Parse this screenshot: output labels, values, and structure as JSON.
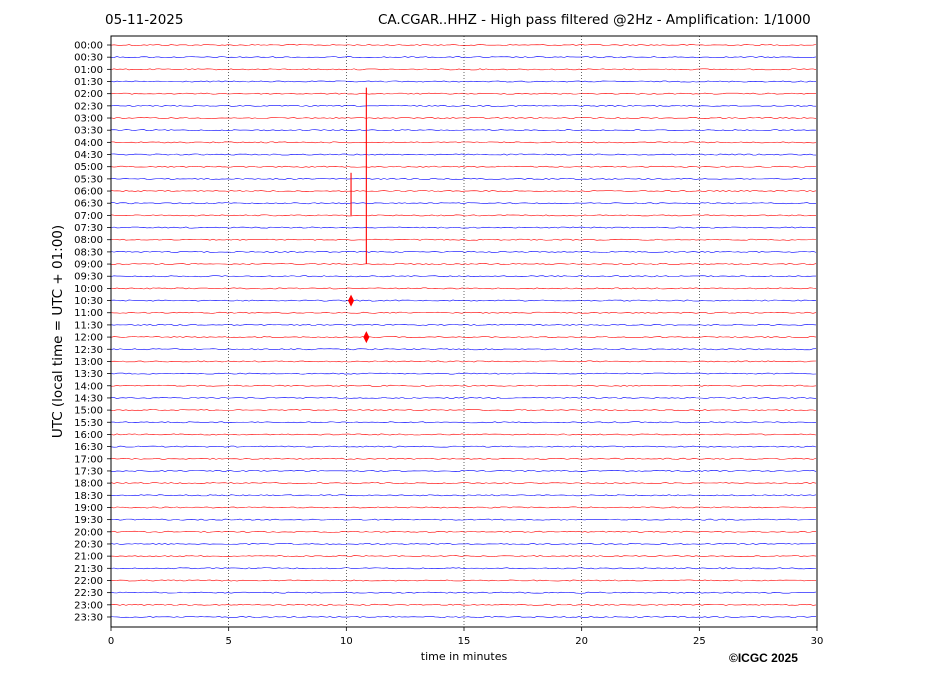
{
  "header": {
    "date": "05-11-2025",
    "title": "CA.CGAR..HHZ - High pass filtered @2Hz - Amplification: 1/1000"
  },
  "copyright": "©ICGC 2025",
  "chart_data": {
    "type": "line",
    "title": "CA.CGAR..HHZ - High pass filtered @2Hz - Amplification: 1/1000",
    "date": "05-11-2025",
    "xlabel": "time in minutes",
    "ylabel": "UTC (local time = UTC + 01:00)",
    "xlim": [
      0,
      30
    ],
    "x_ticks": [
      0,
      5,
      10,
      15,
      20,
      25,
      30
    ],
    "x_tick_labels": [
      "0",
      "5",
      "10",
      "15",
      "20",
      "25",
      "30"
    ],
    "y_tick_labels": [
      "00:00",
      "00:30",
      "01:00",
      "01:30",
      "02:00",
      "02:30",
      "03:00",
      "03:30",
      "04:00",
      "04:30",
      "05:00",
      "05:30",
      "06:00",
      "06:30",
      "07:00",
      "07:30",
      "08:00",
      "08:30",
      "09:00",
      "09:30",
      "10:00",
      "10:30",
      "11:00",
      "11:30",
      "12:00",
      "12:30",
      "13:00",
      "13:30",
      "14:00",
      "14:30",
      "15:00",
      "15:30",
      "16:00",
      "16:30",
      "17:00",
      "17:30",
      "18:00",
      "18:30",
      "19:00",
      "19:30",
      "20:00",
      "20:30",
      "21:00",
      "21:30",
      "22:00",
      "22:30",
      "23:00",
      "23:30"
    ],
    "trace_colors": [
      "#ff0000",
      "#0000ff"
    ],
    "grid": "vertical dotted lines at x ticks",
    "events": [
      {
        "row": "10:30",
        "minute": 10.2,
        "span_rows": [
          10.5,
          14.0
        ]
      },
      {
        "row": "12:00",
        "minute": 10.85,
        "span_rows": [
          3.5,
          18.0
        ]
      }
    ]
  }
}
